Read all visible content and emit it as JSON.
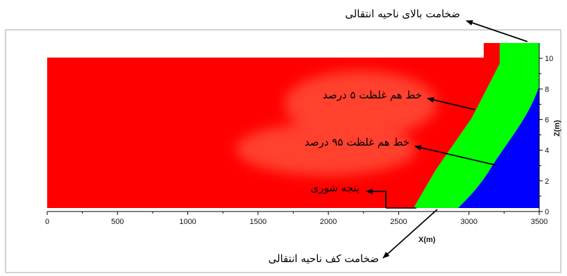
{
  "colors": {
    "saline": "#0000FF",
    "transition": "#00FF00",
    "fresh": "#FF0000",
    "axis": "#000000",
    "frame": "#BFBFBF"
  },
  "axes": {
    "x": {
      "label": "X(m)",
      "range": [
        0,
        3500
      ],
      "ticks": [
        "0",
        "500",
        "1000",
        "1500",
        "2000",
        "2500",
        "3000",
        "3500"
      ]
    },
    "z": {
      "label": "Z(m)",
      "range": [
        0,
        11
      ],
      "ticks": [
        "0",
        "2",
        "4",
        "6",
        "8",
        "10"
      ]
    }
  },
  "annotations": {
    "top_thickness": "ضخامت بالای ناحیه انتقالی",
    "isoline_5": "خط هم غلظت ۵ درصد",
    "isoline_95": "خط هم غلظت ۹۵ درصد",
    "saltwater_toe": "پنجه شوری",
    "bottom_thickness": "ضخامت کف ناحیه انتقالی"
  }
}
